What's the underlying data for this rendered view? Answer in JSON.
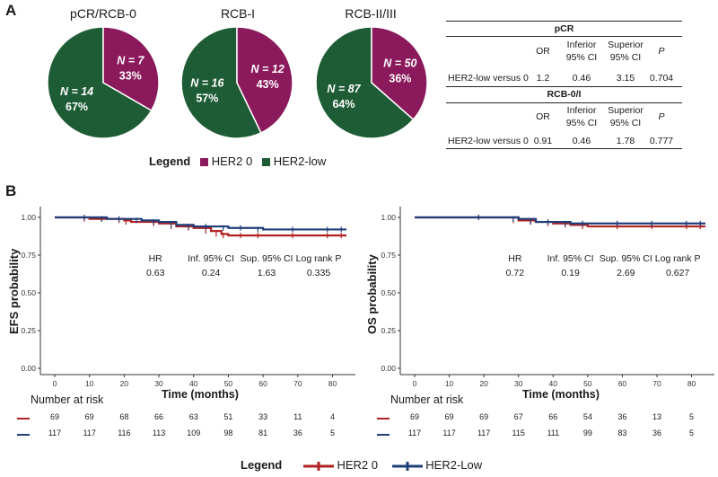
{
  "panels": {
    "a": "A",
    "b": "B"
  },
  "pies": {
    "titles": [
      "pCR/RCB-0",
      "RCB-I",
      "RCB-II/III"
    ],
    "labels": [
      {
        "n_her20": "N = 7",
        "pct_her20": "33%",
        "n_low": "N = 14",
        "pct_low": "67%"
      },
      {
        "n_her20": "N = 12",
        "pct_her20": "43%",
        "n_low": "N = 16",
        "pct_low": "57%"
      },
      {
        "n_her20": "N = 50",
        "pct_her20": "36%",
        "n_low": "N = 87",
        "pct_low": "64%"
      }
    ],
    "legend": {
      "title": "Legend",
      "her20": "HER2 0",
      "low": "HER2-low"
    },
    "colors": {
      "her20": "#8b1a5c",
      "low": "#1e5c35"
    }
  },
  "or_table": {
    "sections": [
      {
        "title": "pCR",
        "headers": [
          "OR",
          "Inferior\n95% CI",
          "Superior\n95% CI",
          "P"
        ],
        "row_label": "HER2-low versus  0",
        "values": [
          "1.2",
          "0.46",
          "3.15",
          "0.704"
        ]
      },
      {
        "title": "RCB-0/I",
        "headers": [
          "OR",
          "Inferior\n95% CI",
          "Superior\n95% CI",
          "P"
        ],
        "row_label": "HER2-low versus  0",
        "values": [
          "0.91",
          "0.46",
          "1.78",
          "0.777"
        ]
      }
    ]
  },
  "km": {
    "colors": {
      "her20": "#b22222",
      "low": "#1f3f7a"
    },
    "x_ticks": [
      "0",
      "10",
      "20",
      "30",
      "40",
      "50",
      "60",
      "70",
      "80"
    ],
    "y_ticks": [
      "0.00",
      "0.25",
      "0.50",
      "0.75",
      "1.00"
    ],
    "xlabel": "Time (months)",
    "risk_title": "Number at risk",
    "legend": {
      "title": "Legend",
      "her20": "HER2 0",
      "low": "HER2-Low"
    },
    "stat_headers": [
      "HR",
      "Inf. 95% CI",
      "Sup. 95% CI",
      "Log rank P"
    ]
  },
  "chart_data": [
    {
      "type": "pie",
      "title": "pCR/RCB-0",
      "labels": [
        "HER2 0",
        "HER2-low"
      ],
      "values": [
        7,
        14
      ],
      "percent": [
        33,
        67
      ]
    },
    {
      "type": "pie",
      "title": "RCB-I",
      "labels": [
        "HER2 0",
        "HER2-low"
      ],
      "values": [
        12,
        16
      ],
      "percent": [
        43,
        57
      ]
    },
    {
      "type": "pie",
      "title": "RCB-II/III",
      "labels": [
        "HER2 0",
        "HER2-low"
      ],
      "values": [
        50,
        87
      ],
      "percent": [
        36,
        64
      ]
    },
    {
      "type": "line",
      "ylabel": "EFS probability",
      "xlabel": "Time (months)",
      "xlim": [
        0,
        84
      ],
      "ylim": [
        0,
        1
      ],
      "series": [
        {
          "name": "HER2 0",
          "x": [
            0,
            5,
            10,
            15,
            20,
            22,
            30,
            35,
            40,
            45,
            48,
            50,
            55,
            60,
            70,
            80,
            84
          ],
          "y": [
            1.0,
            1.0,
            0.99,
            0.99,
            0.98,
            0.97,
            0.96,
            0.94,
            0.93,
            0.91,
            0.89,
            0.88,
            0.88,
            0.88,
            0.88,
            0.88,
            0.88
          ]
        },
        {
          "name": "HER2-Low",
          "x": [
            0,
            5,
            10,
            15,
            20,
            25,
            30,
            35,
            40,
            45,
            50,
            55,
            60,
            70,
            80,
            84
          ],
          "y": [
            1.0,
            1.0,
            1.0,
            0.99,
            0.99,
            0.98,
            0.97,
            0.95,
            0.94,
            0.94,
            0.93,
            0.93,
            0.92,
            0.92,
            0.92,
            0.92
          ]
        }
      ],
      "stats": {
        "HR": "0.63",
        "Inf. 95% CI": "0.24",
        "Sup. 95% CI": "1.63",
        "Log rank P": "0.335"
      },
      "risk": {
        "HER2 0": [
          "69",
          "69",
          "68",
          "66",
          "63",
          "51",
          "33",
          "11",
          "4"
        ],
        "HER2-Low": [
          "117",
          "117",
          "116",
          "113",
          "109",
          "98",
          "81",
          "36",
          "5"
        ]
      }
    },
    {
      "type": "line",
      "ylabel": "OS probability",
      "xlabel": "Time (months)",
      "xlim": [
        0,
        84
      ],
      "ylim": [
        0,
        1
      ],
      "series": [
        {
          "name": "HER2 0",
          "x": [
            0,
            10,
            20,
            30,
            35,
            40,
            45,
            50,
            60,
            70,
            80,
            84
          ],
          "y": [
            1.0,
            1.0,
            1.0,
            0.98,
            0.97,
            0.96,
            0.95,
            0.94,
            0.94,
            0.94,
            0.94,
            0.94
          ]
        },
        {
          "name": "HER2-Low",
          "x": [
            0,
            10,
            20,
            30,
            35,
            40,
            45,
            50,
            60,
            70,
            80,
            84
          ],
          "y": [
            1.0,
            1.0,
            1.0,
            0.99,
            0.97,
            0.97,
            0.96,
            0.96,
            0.96,
            0.96,
            0.96,
            0.96
          ]
        }
      ],
      "stats": {
        "HR": "0.72",
        "Inf. 95% CI": "0.19",
        "Sup. 95% CI": "2.69",
        "Log rank P": "0.627"
      },
      "risk": {
        "HER2 0": [
          "69",
          "69",
          "69",
          "67",
          "66",
          "54",
          "36",
          "13",
          "5"
        ],
        "HER2-Low": [
          "117",
          "117",
          "117",
          "115",
          "111",
          "99",
          "83",
          "36",
          "5"
        ]
      }
    }
  ]
}
